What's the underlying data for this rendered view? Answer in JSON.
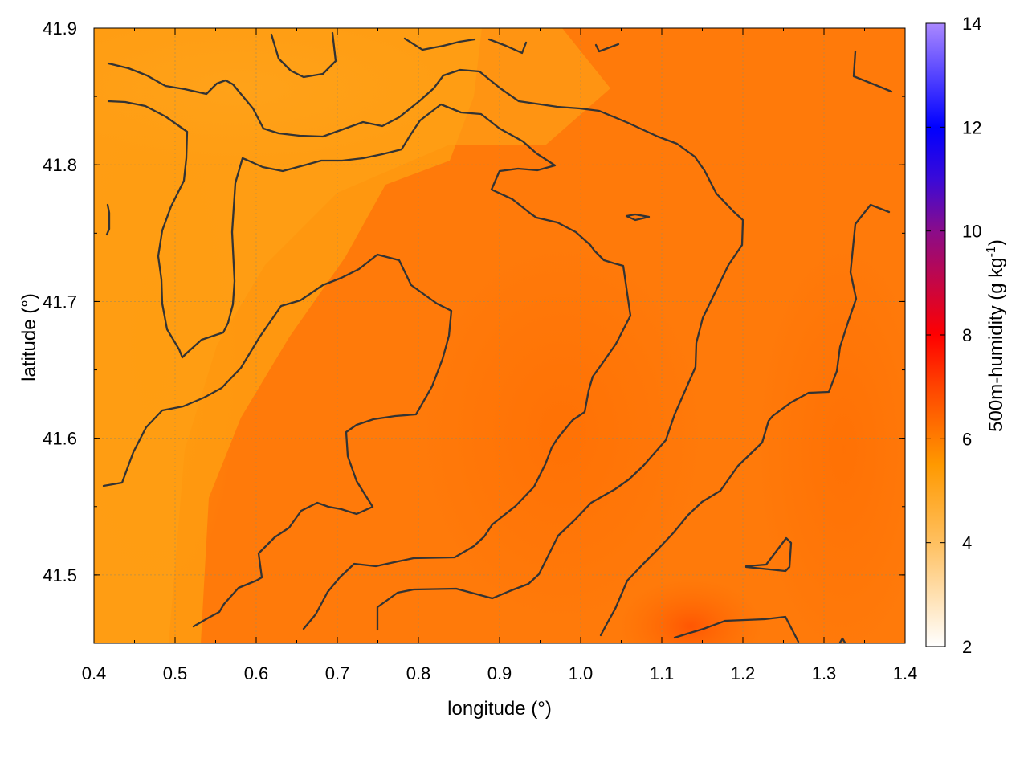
{
  "chart_data": {
    "type": "heatmap",
    "title": "",
    "xlabel": "longitude (°)",
    "ylabel": "latitude (°)",
    "xlim": [
      0.4,
      1.4
    ],
    "ylim": [
      41.45,
      41.9
    ],
    "x_ticks": [
      0.4,
      0.5,
      0.6,
      0.7,
      0.8,
      0.9,
      1.0,
      1.1,
      1.2,
      1.3,
      1.4
    ],
    "x_tick_labels": [
      "0.4",
      "0.5",
      "0.6",
      "0.7",
      "0.8",
      "0.9",
      "1.0",
      "1.1",
      "1.2",
      "1.3",
      "1.4"
    ],
    "y_ticks": [
      41.5,
      41.6,
      41.7,
      41.8,
      41.9
    ],
    "y_tick_labels": [
      "41.5",
      "41.6",
      "41.7",
      "41.8",
      "41.9"
    ],
    "grid": true,
    "colorbar": {
      "label": "500m-humidity (g kg",
      "label_superscript": "-1",
      "label_suffix": ")",
      "range": [
        2,
        14
      ],
      "ticks": [
        2,
        4,
        6,
        8,
        10,
        12,
        14
      ],
      "tick_labels": [
        "2",
        "4",
        "6",
        "8",
        "10",
        "12",
        "14"
      ],
      "colors": [
        {
          "value": 2,
          "color": "#ffffff"
        },
        {
          "value": 4,
          "color": "#ffc060"
        },
        {
          "value": 5.5,
          "color": "#ff9900"
        },
        {
          "value": 7,
          "color": "#ff4400"
        },
        {
          "value": 8,
          "color": "#ff0000"
        },
        {
          "value": 10,
          "color": "#8a0c8a"
        },
        {
          "value": 11,
          "color": "#3a0ad8"
        },
        {
          "value": 12,
          "color": "#0000ff"
        },
        {
          "value": 14,
          "color": "#aa88ff"
        }
      ]
    },
    "field_samples": [
      {
        "lon": 0.45,
        "lat": 41.88,
        "value": 5.0
      },
      {
        "lon": 0.6,
        "lat": 41.86,
        "value": 5.1
      },
      {
        "lon": 0.7,
        "lat": 41.85,
        "value": 5.3
      },
      {
        "lon": 0.85,
        "lat": 41.8,
        "value": 5.6
      },
      {
        "lon": 0.5,
        "lat": 41.6,
        "value": 5.1
      },
      {
        "lon": 0.45,
        "lat": 41.5,
        "value": 5.3
      },
      {
        "lon": 0.95,
        "lat": 41.65,
        "value": 6.2
      },
      {
        "lon": 1.1,
        "lat": 41.55,
        "value": 6.4
      },
      {
        "lon": 1.14,
        "lat": 41.46,
        "value": 7.0
      },
      {
        "lon": 1.35,
        "lat": 41.7,
        "value": 6.2
      },
      {
        "lon": 1.3,
        "lat": 41.85,
        "value": 5.9
      }
    ],
    "contour_levels": [
      5.5,
      6.0
    ]
  }
}
